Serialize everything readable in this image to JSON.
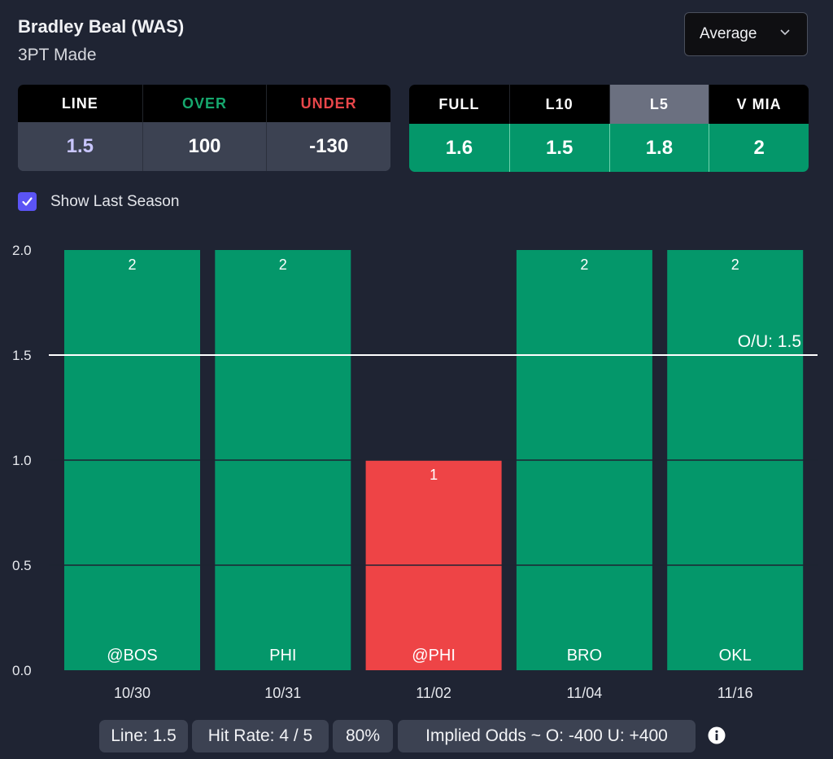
{
  "header": {
    "player": "Bradley Beal (WAS)",
    "stat": "3PT Made",
    "dropdown_value": "Average",
    "dropdown_icon": "chevron-down-icon"
  },
  "line_table": {
    "headers": [
      "LINE",
      "OVER",
      "UNDER"
    ],
    "header_colors": [
      "#ffffff",
      "#16a86e",
      "#e8464a"
    ],
    "values": [
      "1.5",
      "100",
      "-130"
    ],
    "value_colors": [
      "#c9c6ff",
      "#ffffff",
      "#ffffff"
    ]
  },
  "split_table": {
    "headers": [
      "FULL",
      "L10",
      "L5",
      "V MIA"
    ],
    "values": [
      "1.6",
      "1.5",
      "1.8",
      "2"
    ],
    "active": "L5"
  },
  "options": {
    "show_last_season_label": "Show Last Season",
    "show_last_season_checked": true
  },
  "chart_data": {
    "type": "bar",
    "categories": [
      "10/30",
      "10/31",
      "11/02",
      "11/04",
      "11/16"
    ],
    "opponents": [
      "@BOS",
      "PHI",
      "@PHI",
      "BRO",
      "OKL"
    ],
    "values": [
      2,
      2,
      1,
      2,
      2
    ],
    "bar_colors": [
      "#04976a",
      "#04976a",
      "#ee4446",
      "#04976a",
      "#04976a"
    ],
    "yticks": [
      "0.0",
      "0.5",
      "1.0",
      "1.5",
      "2.0"
    ],
    "ylim": [
      0,
      2
    ],
    "line": {
      "label": "O/U: 1.5",
      "value": 1.5
    },
    "grid": true
  },
  "footer": {
    "line": "Line: 1.5",
    "hit_rate": "Hit Rate: 4 / 5",
    "pct": "80%",
    "implied_odds": "Implied Odds ~ O: -400 U: +400",
    "info_icon": "info-icon"
  }
}
